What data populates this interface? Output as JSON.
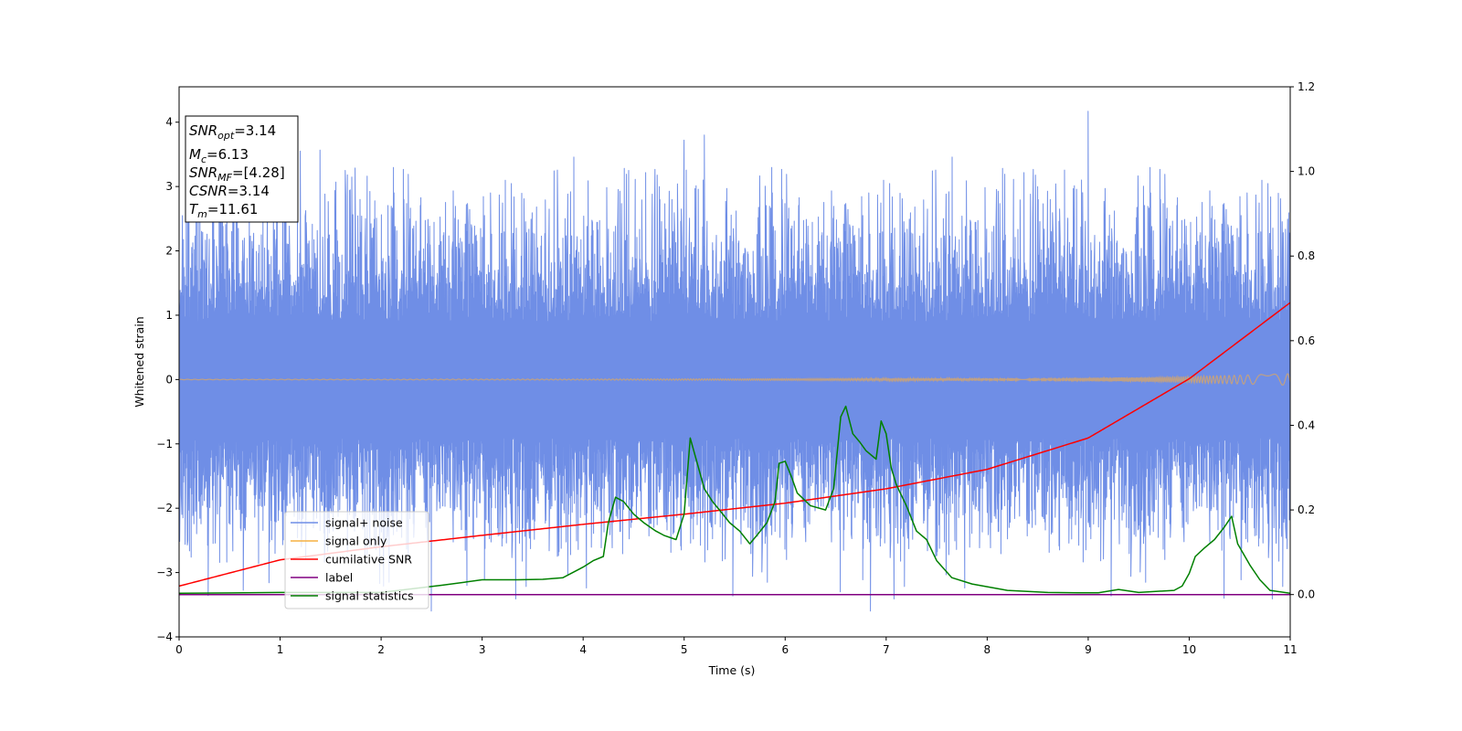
{
  "chart_data": {
    "type": "line",
    "title": "",
    "xlabel": "Time (s)",
    "ylabel": "Whitened strain",
    "ylabel_right": "",
    "xlim": [
      0,
      11
    ],
    "ylim": [
      -4,
      4.55
    ],
    "ylim_right": [
      -0.1,
      1.2
    ],
    "x_ticks": [
      "0",
      "1",
      "2",
      "3",
      "4",
      "5",
      "6",
      "7",
      "8",
      "9",
      "10",
      "11"
    ],
    "y_ticks": [
      "−4",
      "−3",
      "−2",
      "−1",
      "0",
      "1",
      "2",
      "3",
      "4"
    ],
    "y_ticks_right": [
      "0.0",
      "0.2",
      "0.4",
      "0.6",
      "0.8",
      "1.0",
      "1.2"
    ],
    "grid": false,
    "legend_position": "lower-left",
    "legend": [
      {
        "label": "signal+ noise",
        "color": "#6f8ee6"
      },
      {
        "label": "signal only",
        "color": "#f5b041"
      },
      {
        "label": "cumilative SNR",
        "color": "#ff0000"
      },
      {
        "label": "label",
        "color": "#800080"
      },
      {
        "label": "signal statistics",
        "color": "#008000"
      }
    ],
    "annotations": [
      {
        "base": "SNR",
        "sub": "opt",
        "value": "=3.14"
      },
      {
        "base": "M",
        "sub": "c",
        "value": "=6.13"
      },
      {
        "base": "SNR",
        "sub": "MF",
        "value": "=[4.28]"
      },
      {
        "base": "CSNR",
        "sub": "",
        "value": "=3.14"
      },
      {
        "base": "T",
        "sub": "m",
        "value": "=11.61"
      }
    ],
    "series": [
      {
        "name": "signal+ noise",
        "axis": "left",
        "style": "dense noise band",
        "band_typical": [
          -1.9,
          2.0
        ],
        "x": [
          0.4,
          1.2,
          1.65,
          2.5,
          2.85,
          4.45,
          5.0,
          5.2,
          6.55,
          6.85,
          9.0,
          10.35
        ],
        "y": [
          3.5,
          3.55,
          3.25,
          -3.6,
          -3.2,
          3.25,
          3.72,
          3.8,
          -3.3,
          -3.6,
          4.17,
          -3.4
        ]
      },
      {
        "name": "signal only",
        "axis": "left",
        "style": "chirp",
        "envelope_x": [
          0,
          4,
          8,
          9.5,
          10.3,
          11
        ],
        "envelope_y": [
          0.004,
          0.008,
          0.02,
          0.035,
          0.06,
          0.09
        ]
      },
      {
        "name": "cumilative SNR",
        "axis": "right",
        "x": [
          0,
          1,
          2,
          3,
          4,
          5,
          6,
          7,
          8,
          9,
          10,
          11
        ],
        "y": [
          0.02,
          0.082,
          0.113,
          0.14,
          0.166,
          0.19,
          0.216,
          0.25,
          0.296,
          0.37,
          0.51,
          0.69
        ]
      },
      {
        "name": "label",
        "axis": "right",
        "x": [
          0,
          11
        ],
        "y": [
          0.0,
          0.0
        ]
      },
      {
        "name": "signal statistics",
        "axis": "right",
        "x": [
          0,
          1,
          2,
          2.6,
          2.85,
          3.0,
          3.35,
          3.6,
          3.8,
          4.0,
          4.1,
          4.2,
          4.25,
          4.32,
          4.4,
          4.5,
          4.6,
          4.66,
          4.72,
          4.8,
          4.92,
          5.0,
          5.06,
          5.13,
          5.2,
          5.28,
          5.35,
          5.45,
          5.55,
          5.65,
          5.72,
          5.82,
          5.9,
          5.94,
          6.0,
          6.06,
          6.12,
          6.25,
          6.4,
          6.48,
          6.55,
          6.6,
          6.67,
          6.74,
          6.8,
          6.9,
          6.95,
          7.0,
          7.05,
          7.1,
          7.2,
          7.3,
          7.4,
          7.5,
          7.65,
          7.85,
          8.2,
          8.6,
          8.9,
          9.1,
          9.3,
          9.5,
          9.85,
          9.93,
          10.0,
          10.06,
          10.15,
          10.25,
          10.35,
          10.42,
          10.48,
          10.6,
          10.7,
          10.8,
          11.0
        ],
        "y": [
          0.003,
          0.005,
          0.005,
          0.022,
          0.03,
          0.035,
          0.035,
          0.036,
          0.04,
          0.065,
          0.08,
          0.09,
          0.17,
          0.23,
          0.22,
          0.19,
          0.17,
          0.16,
          0.15,
          0.14,
          0.13,
          0.19,
          0.37,
          0.31,
          0.25,
          0.22,
          0.2,
          0.17,
          0.15,
          0.12,
          0.14,
          0.17,
          0.22,
          0.31,
          0.315,
          0.28,
          0.24,
          0.21,
          0.2,
          0.25,
          0.42,
          0.445,
          0.38,
          0.36,
          0.34,
          0.32,
          0.41,
          0.38,
          0.3,
          0.26,
          0.21,
          0.15,
          0.13,
          0.08,
          0.04,
          0.025,
          0.01,
          0.005,
          0.004,
          0.004,
          0.012,
          0.005,
          0.01,
          0.02,
          0.05,
          0.09,
          0.11,
          0.13,
          0.16,
          0.185,
          0.12,
          0.07,
          0.035,
          0.01,
          0.003
        ]
      }
    ]
  }
}
